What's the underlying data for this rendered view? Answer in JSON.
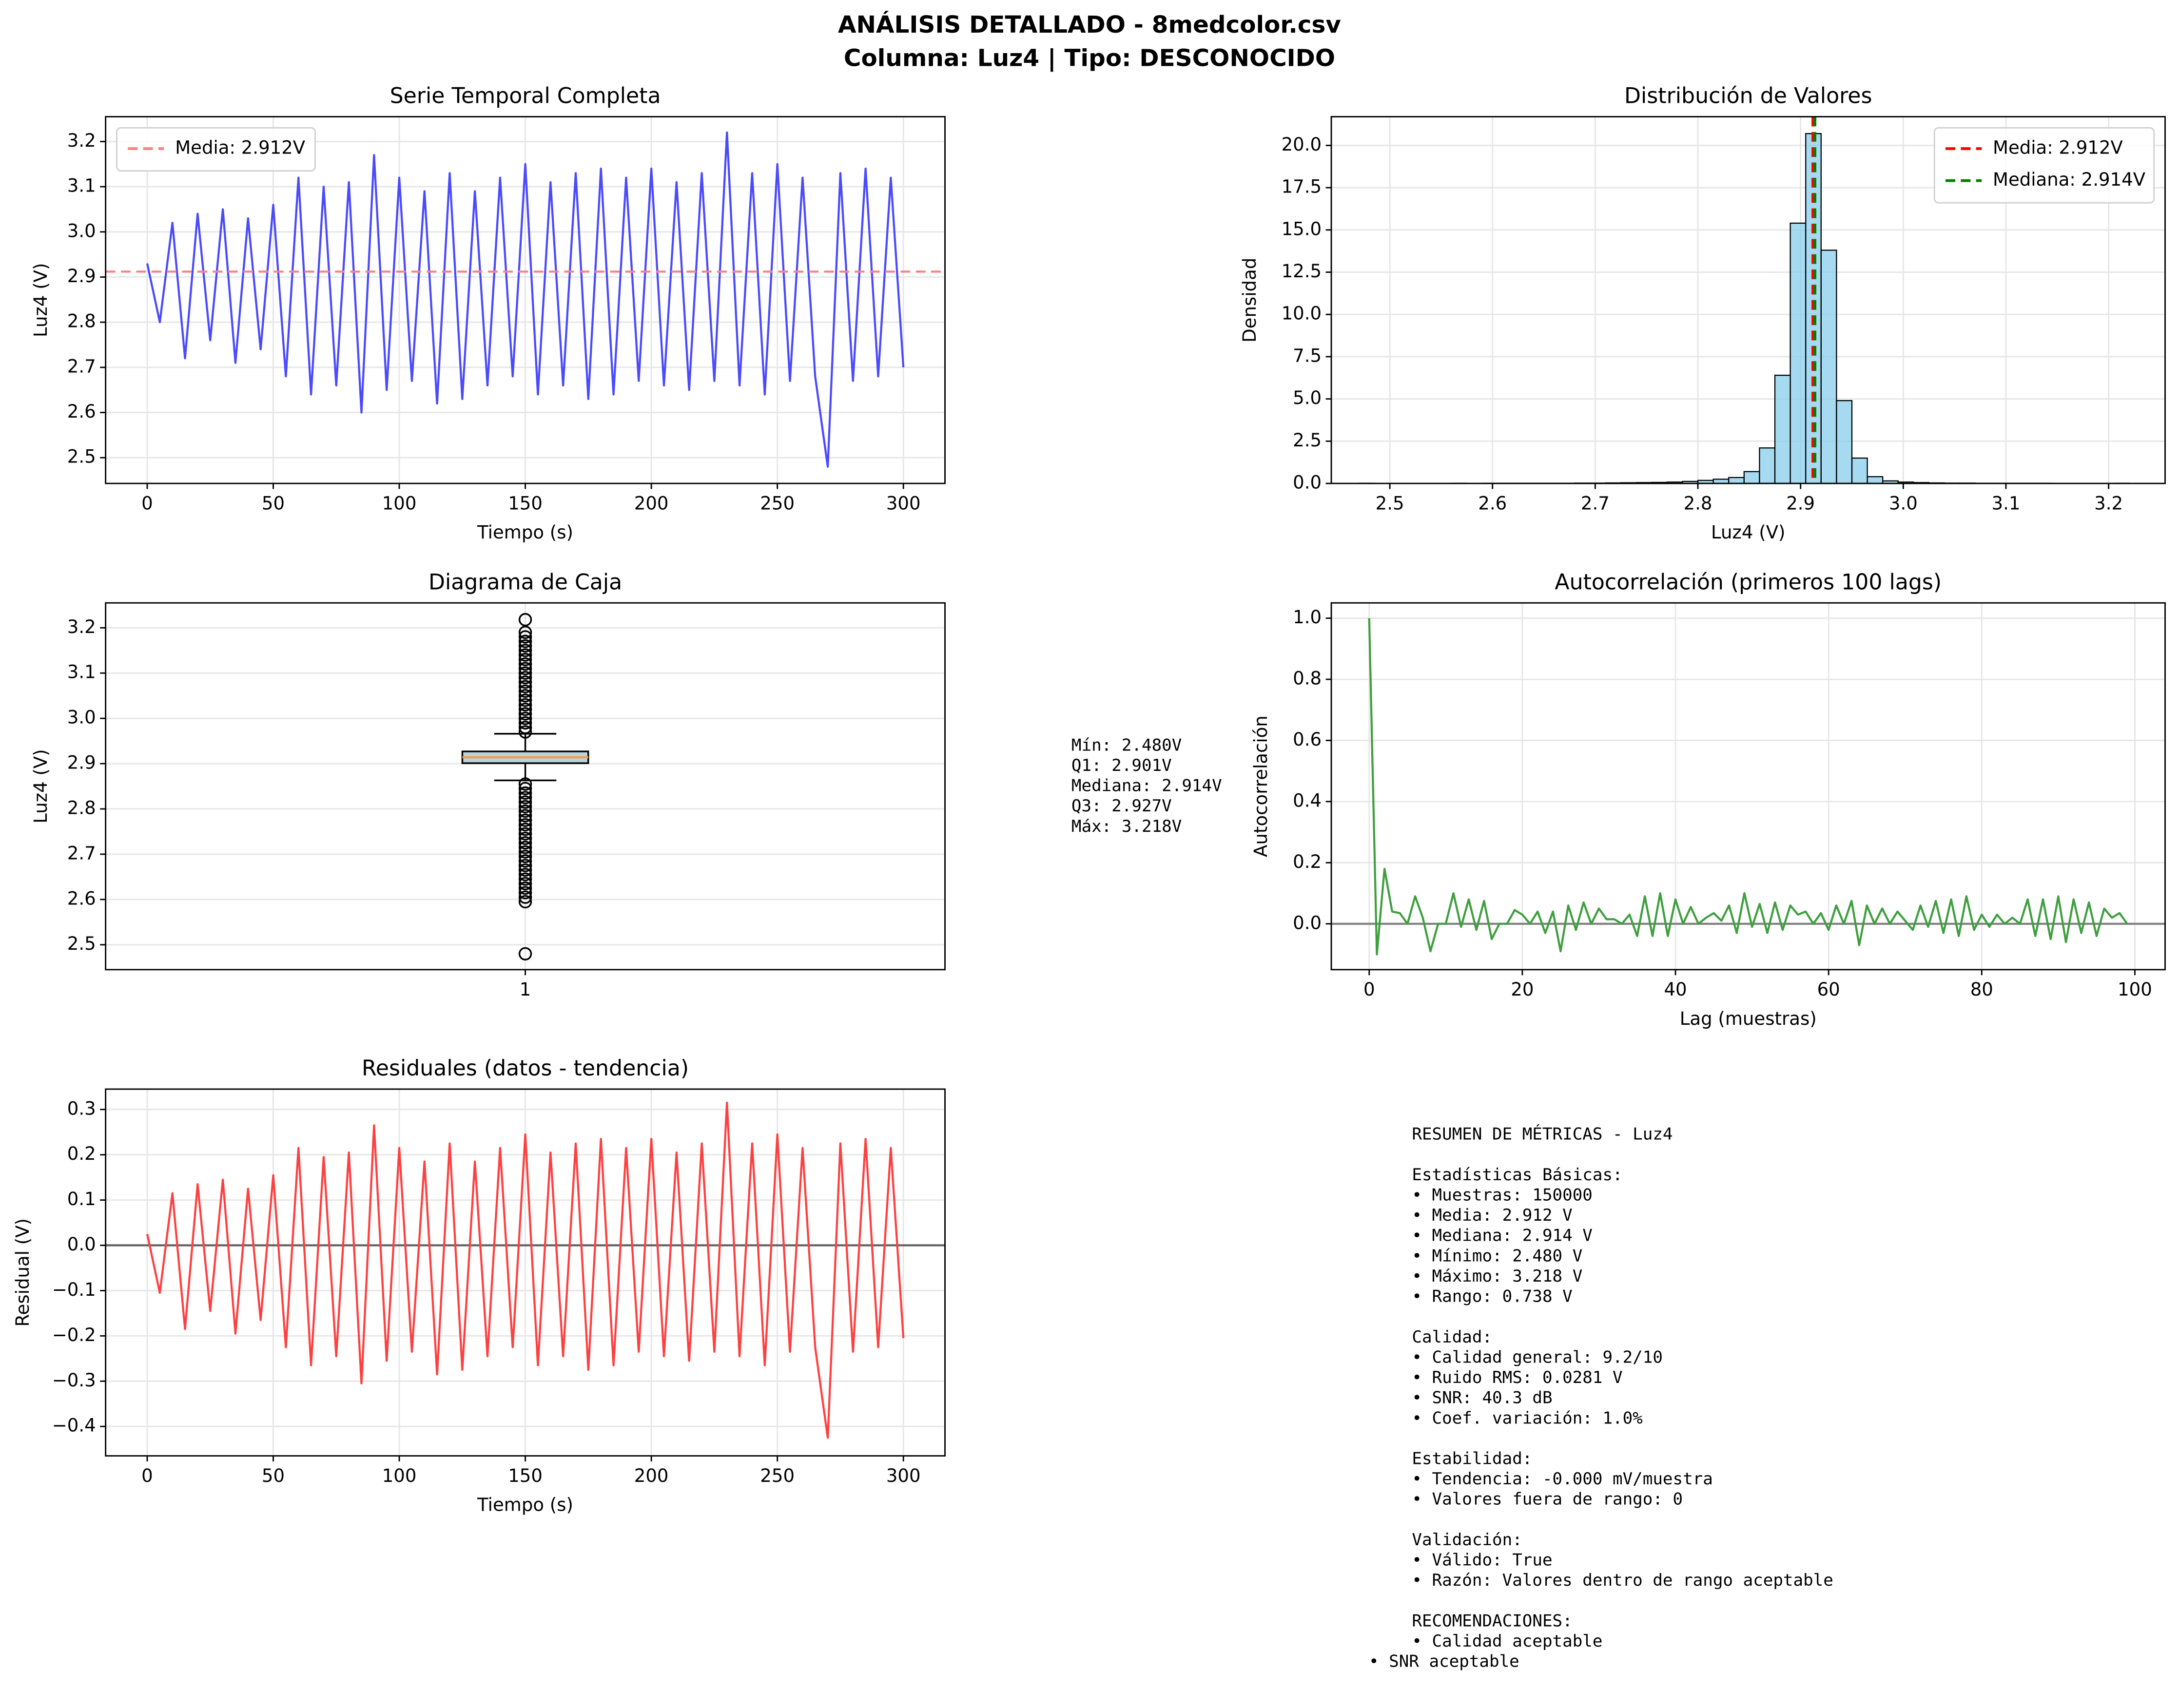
{
  "figure": {
    "title": "ANÁLISIS DETALLADO - 8medcolor.csv",
    "subtitle": "Columna: Luz4 | Tipo: DESCONOCIDO"
  },
  "chart_data": [
    {
      "type": "line",
      "title": "Serie Temporal Completa",
      "xlabel": "Tiempo (s)",
      "ylabel": "Luz4 (V)",
      "grid": true,
      "legend": "upper left",
      "x": [
        0,
        5,
        10,
        15,
        20,
        25,
        30,
        35,
        40,
        45,
        50,
        55,
        60,
        65,
        70,
        75,
        80,
        85,
        90,
        95,
        100,
        105,
        110,
        115,
        120,
        125,
        130,
        135,
        140,
        145,
        150,
        155,
        160,
        165,
        170,
        175,
        180,
        185,
        190,
        195,
        200,
        205,
        210,
        215,
        220,
        225,
        230,
        235,
        240,
        245,
        250,
        255,
        260,
        265,
        270,
        275,
        280,
        285,
        290,
        295,
        300
      ],
      "series": [
        {
          "color": "#4a4aff",
          "values": [
            2.93,
            2.8,
            3.02,
            2.72,
            3.04,
            2.76,
            3.05,
            2.71,
            3.03,
            2.74,
            3.06,
            2.68,
            3.12,
            2.64,
            3.1,
            2.66,
            3.11,
            2.6,
            3.17,
            2.65,
            3.12,
            2.67,
            3.09,
            2.62,
            3.13,
            2.63,
            3.09,
            2.66,
            3.12,
            2.68,
            3.15,
            2.64,
            3.11,
            2.66,
            3.13,
            2.63,
            3.14,
            2.64,
            3.12,
            2.67,
            3.14,
            2.66,
            3.11,
            2.65,
            3.13,
            2.67,
            3.22,
            2.66,
            3.13,
            2.64,
            3.15,
            2.67,
            3.12,
            2.68,
            2.48,
            3.13,
            2.67,
            3.14,
            2.68,
            3.12,
            2.7
          ]
        }
      ],
      "hlines": [
        {
          "value": 2.912,
          "label": "Media: 2.912V",
          "color": "#ff8080",
          "style": "dashed"
        }
      ],
      "xlim": [
        -16.5,
        316.5
      ],
      "xticks": [
        0,
        50,
        100,
        150,
        200,
        250,
        300
      ],
      "ylim": [
        2.443,
        3.255
      ],
      "yticks": [
        2.5,
        2.6,
        2.7,
        2.8,
        2.9,
        {
          "value": 3,
          "label": "3.0"
        },
        3.1,
        3.2
      ]
    },
    {
      "type": "histogram",
      "title": "Distribución de Valores",
      "xlabel": "Luz4 (V)",
      "ylabel": "Densidad",
      "grid": true,
      "legend": "upper right",
      "color": "#87ceeb",
      "bins": [
        2.47,
        2.485,
        2.5,
        2.515,
        2.53,
        2.545,
        2.56,
        2.575,
        2.59,
        2.605,
        2.62,
        2.635,
        2.65,
        2.665,
        2.68,
        2.695,
        2.71,
        2.725,
        2.74,
        2.755,
        2.77,
        2.785,
        2.8,
        2.815,
        2.83,
        2.845,
        2.86,
        2.875,
        2.89,
        2.905,
        2.92,
        2.935,
        2.95,
        2.965,
        2.98,
        2.995,
        3.01,
        3.025,
        3.04,
        3.055,
        3.07,
        3.085,
        3.1,
        3.115,
        3.13,
        3.145,
        3.16,
        3.175,
        3.19,
        3.205,
        3.22
      ],
      "values": [
        0.01,
        0,
        0,
        0,
        0,
        0,
        0.01,
        0,
        0.01,
        0.01,
        0.01,
        0.01,
        0.01,
        0.01,
        0.02,
        0.02,
        0.03,
        0.04,
        0.05,
        0.06,
        0.08,
        0.12,
        0.18,
        0.25,
        0.35,
        0.7,
        2.1,
        6.4,
        15.4,
        20.7,
        13.8,
        4.9,
        1.5,
        0.4,
        0.15,
        0.08,
        0.05,
        0.03,
        0.02,
        0.02,
        0.01,
        0.01,
        0.01,
        0.01,
        0.01,
        0,
        0,
        0,
        0,
        0.01
      ],
      "vlines": [
        {
          "value": 2.912,
          "label": "Media: 2.912V",
          "color": "#ff0000",
          "style": "dashed"
        },
        {
          "value": 2.914,
          "label": "Mediana: 2.914V",
          "color": "#008000",
          "style": "dashed"
        }
      ],
      "xlim": [
        2.443,
        3.255
      ],
      "xticks": [
        2.5,
        2.6,
        2.7,
        2.8,
        2.9,
        {
          "value": 3,
          "label": "3.0"
        },
        3.1,
        3.2
      ],
      "ylim": [
        0,
        21.7
      ],
      "yticks": [
        {
          "value": 0,
          "label": "0.0"
        },
        2.5,
        {
          "value": 5,
          "label": "5.0"
        },
        7.5,
        {
          "value": 10,
          "label": "10.0"
        },
        12.5,
        {
          "value": 15,
          "label": "15.0"
        },
        17.5,
        {
          "value": 20,
          "label": "20.0"
        }
      ]
    },
    {
      "type": "box",
      "title": "Diagrama de Caja",
      "ylabel": "Luz4 (V)",
      "grid": true,
      "color": "#b9d3dc",
      "median_color": "#ff9a3c",
      "stats": {
        "whisker_low": 2.863,
        "q1": 2.901,
        "median": 2.914,
        "q3": 2.927,
        "whisker_high": 2.966
      },
      "outliers": [
        2.48,
        2.595,
        2.605,
        2.615,
        2.625,
        2.635,
        2.645,
        2.655,
        2.665,
        2.675,
        2.685,
        2.695,
        2.705,
        2.715,
        2.725,
        2.735,
        2.745,
        2.755,
        2.765,
        2.775,
        2.785,
        2.795,
        2.805,
        2.815,
        2.825,
        2.835,
        2.845,
        2.855,
        2.97,
        2.98,
        2.99,
        3.0,
        3.01,
        3.02,
        3.03,
        3.04,
        3.05,
        3.06,
        3.07,
        3.08,
        3.09,
        3.1,
        3.11,
        3.12,
        3.13,
        3.14,
        3.15,
        3.16,
        3.17,
        3.18,
        3.19,
        3.218
      ],
      "annotations": [
        "Mín: 2.480V",
        "Q1: 2.901V",
        "Mediana: 2.914V",
        "Q3: 2.927V",
        "Máx: 3.218V"
      ],
      "xlim": [
        0.5,
        1.5
      ],
      "xticks": [
        1
      ],
      "ylim": [
        2.445,
        3.255
      ],
      "yticks": [
        2.5,
        2.6,
        2.7,
        2.8,
        2.9,
        {
          "value": 3,
          "label": "3.0"
        },
        3.1,
        3.2
      ]
    },
    {
      "type": "line",
      "title": "Autocorrelación (primeros 100 lags)",
      "xlabel": "Lag (muestras)",
      "ylabel": "Autocorrelación",
      "grid": true,
      "x": [
        0,
        1,
        2,
        3,
        4,
        5,
        6,
        7,
        8,
        9,
        10,
        11,
        12,
        13,
        14,
        15,
        16,
        17,
        18,
        19,
        20,
        21,
        22,
        23,
        24,
        25,
        26,
        27,
        28,
        29,
        30,
        31,
        32,
        33,
        34,
        35,
        36,
        37,
        38,
        39,
        40,
        41,
        42,
        43,
        44,
        45,
        46,
        47,
        48,
        49,
        50,
        51,
        52,
        53,
        54,
        55,
        56,
        57,
        58,
        59,
        60,
        61,
        62,
        63,
        64,
        65,
        66,
        67,
        68,
        69,
        70,
        71,
        72,
        73,
        74,
        75,
        76,
        77,
        78,
        79,
        80,
        81,
        82,
        83,
        84,
        85,
        86,
        87,
        88,
        89,
        90,
        91,
        92,
        93,
        94,
        95,
        96,
        97,
        98,
        99
      ],
      "series": [
        {
          "color": "#3f9f3f",
          "values": [
            1.0,
            -0.1,
            0.18,
            0.04,
            0.035,
            0.0,
            0.09,
            0.02,
            -0.09,
            0.0,
            0.0,
            0.1,
            -0.01,
            0.08,
            -0.02,
            0.075,
            -0.05,
            0.0,
            0.0,
            0.045,
            0.03,
            0.0,
            0.04,
            -0.03,
            0.04,
            -0.09,
            0.06,
            -0.02,
            0.07,
            0.0,
            0.05,
            0.015,
            0.015,
            0.0,
            0.03,
            -0.04,
            0.09,
            -0.04,
            0.1,
            -0.04,
            0.08,
            0.0,
            0.055,
            0.0,
            0.02,
            0.035,
            0.01,
            0.06,
            -0.03,
            0.1,
            -0.01,
            0.065,
            -0.03,
            0.07,
            -0.02,
            0.06,
            0.03,
            0.04,
            0.0,
            0.035,
            -0.02,
            0.06,
            0.0,
            0.075,
            -0.07,
            0.06,
            0.0,
            0.05,
            0.0,
            0.04,
            0.01,
            -0.02,
            0.06,
            -0.01,
            0.075,
            -0.03,
            0.08,
            -0.04,
            0.09,
            -0.02,
            0.03,
            -0.01,
            0.03,
            0.0,
            0.02,
            0.0,
            0.08,
            -0.04,
            0.08,
            -0.05,
            0.09,
            -0.06,
            0.08,
            -0.03,
            0.07,
            -0.04,
            0.05,
            0.02,
            0.035,
            0.0
          ]
        }
      ],
      "hlines": [
        {
          "value": 0,
          "color": "#808080"
        }
      ],
      "xlim": [
        -4.95,
        103.95
      ],
      "xticks": [
        0,
        20,
        40,
        60,
        80,
        100
      ],
      "ylim": [
        -0.15,
        1.05
      ],
      "yticks": [
        {
          "value": 0,
          "label": "0.0"
        },
        0.2,
        0.4,
        0.6,
        0.8,
        {
          "value": 1,
          "label": "1.0"
        }
      ]
    },
    {
      "type": "line",
      "title": "Residuales (datos - tendencia)",
      "xlabel": "Tiempo (s)",
      "ylabel": "Residual (V)",
      "grid": true,
      "x": [
        0,
        5,
        10,
        15,
        20,
        25,
        30,
        35,
        40,
        45,
        50,
        55,
        60,
        65,
        70,
        75,
        80,
        85,
        90,
        95,
        100,
        105,
        110,
        115,
        120,
        125,
        130,
        135,
        140,
        145,
        150,
        155,
        160,
        165,
        170,
        175,
        180,
        185,
        190,
        195,
        200,
        205,
        210,
        215,
        220,
        225,
        230,
        235,
        240,
        245,
        250,
        255,
        260,
        265,
        270,
        275,
        280,
        285,
        290,
        295,
        300
      ],
      "series": [
        {
          "color": "#ff4040",
          "values": [
            0.025,
            -0.105,
            0.115,
            -0.185,
            0.135,
            -0.145,
            0.145,
            -0.195,
            0.125,
            -0.165,
            0.155,
            -0.225,
            0.215,
            -0.265,
            0.195,
            -0.245,
            0.205,
            -0.305,
            0.265,
            -0.255,
            0.215,
            -0.235,
            0.185,
            -0.285,
            0.225,
            -0.275,
            0.185,
            -0.245,
            0.215,
            -0.225,
            0.245,
            -0.265,
            0.205,
            -0.245,
            0.225,
            -0.275,
            0.235,
            -0.265,
            0.215,
            -0.235,
            0.235,
            -0.245,
            0.205,
            -0.255,
            0.225,
            -0.235,
            0.315,
            -0.245,
            0.225,
            -0.265,
            0.245,
            -0.235,
            0.215,
            -0.225,
            -0.425,
            0.225,
            -0.235,
            0.235,
            -0.225,
            0.215,
            -0.205
          ]
        }
      ],
      "hlines": [
        {
          "value": 0,
          "color": "#606060"
        }
      ],
      "xlim": [
        -16.5,
        316.5
      ],
      "xticks": [
        0,
        50,
        100,
        150,
        200,
        250,
        300
      ],
      "ylim": [
        -0.465,
        0.345
      ],
      "yticks": [
        {
          "value": -0.4,
          "label": "−0.4"
        },
        {
          "value": -0.3,
          "label": "−0.3"
        },
        {
          "value": -0.2,
          "label": "−0.2"
        },
        {
          "value": -0.1,
          "label": "−0.1"
        },
        {
          "value": 0,
          "label": "0.0"
        },
        0.1,
        0.2,
        0.3
      ]
    }
  ],
  "summary": {
    "title": "RESUMEN DE MÉTRICAS - Luz4",
    "sections": [
      {
        "heading": "Estadísticas Básicas:",
        "items": [
          "• Muestras: 150000",
          "• Media: 2.912 V",
          "• Mediana: 2.914 V",
          "• Mínimo: 2.480 V",
          "• Máximo: 3.218 V",
          "• Rango: 0.738 V"
        ]
      },
      {
        "heading": "Calidad:",
        "items": [
          "• Calidad general: 9.2/10",
          "• Ruido RMS: 0.0281 V",
          "• SNR: 40.3 dB",
          "• Coef. variación: 1.0%"
        ]
      },
      {
        "heading": "Estabilidad:",
        "items": [
          "• Tendencia: -0.000 mV/muestra",
          "• Valores fuera de rango: 0"
        ]
      },
      {
        "heading": "Validación:",
        "items": [
          "• Válido: True",
          "• Razón: Valores dentro de rango aceptable"
        ]
      },
      {
        "heading": "RECOMENDACIONES:",
        "items": [
          "• Calidad aceptable",
          "• SNR aceptable"
        ]
      }
    ]
  }
}
